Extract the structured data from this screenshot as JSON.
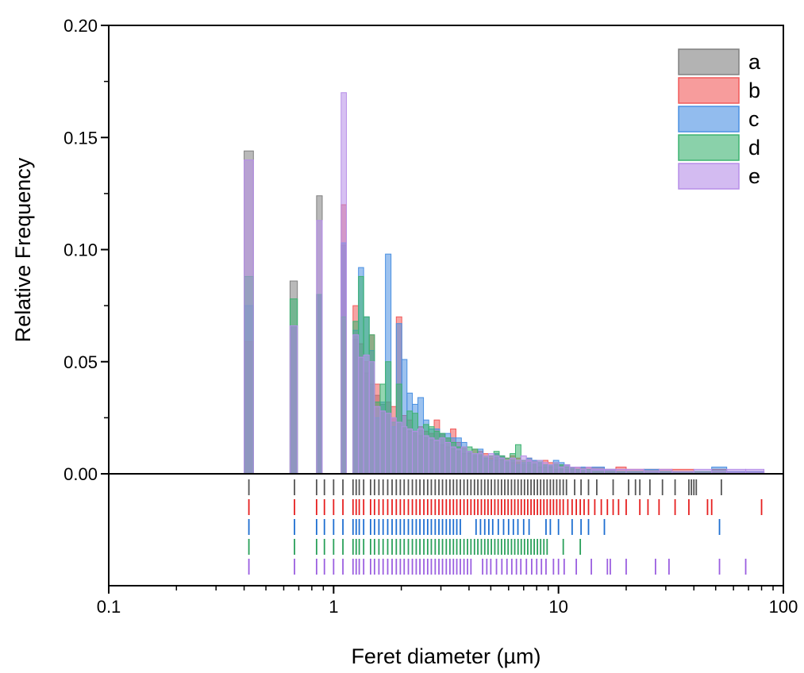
{
  "chart_data": {
    "type": "bar",
    "title": "",
    "xlabel": "Feret diameter (µm)",
    "ylabel": "Relative Frequency",
    "xscale": "log",
    "xlim": [
      0.1,
      100
    ],
    "ylim": [
      0,
      0.2
    ],
    "x_ticks": [
      {
        "value": 0.1,
        "label": "0.1"
      },
      {
        "value": 1,
        "label": "1"
      },
      {
        "value": 10,
        "label": "10"
      },
      {
        "value": 100,
        "label": "100"
      }
    ],
    "y_ticks": [
      {
        "value": 0,
        "label": "0.00"
      },
      {
        "value": 0.05,
        "label": "0.05"
      },
      {
        "value": 0.1,
        "label": "0.10"
      },
      {
        "value": 0.15,
        "label": "0.15"
      },
      {
        "value": 0.2,
        "label": "0.20"
      }
    ],
    "legend_position": "top-right",
    "grid": false,
    "rug_plot": "below-axis",
    "bin_edges": [
      0.4,
      0.44,
      0.64,
      0.69,
      0.84,
      0.89,
      1.08,
      1.14,
      1.22,
      1.29,
      1.36,
      1.44,
      1.52,
      1.61,
      1.7,
      1.8,
      1.9,
      2.01,
      2.12,
      2.24,
      2.37,
      2.51,
      2.65,
      2.8,
      2.96,
      3.13,
      3.31,
      3.5,
      3.7,
      3.91,
      4.13,
      4.37,
      4.62,
      4.88,
      5.16,
      5.45,
      5.76,
      6.09,
      6.44,
      6.81,
      7.2,
      7.61,
      8.04,
      8.5,
      8.98,
      9.49,
      10.03,
      10.6,
      11.21,
      11.85,
      12.52,
      13.24,
      14.0,
      16.0,
      18.0,
      20.0,
      24.0,
      28.0,
      32.0,
      40.0,
      48.0,
      56.0,
      68.0,
      82.0
    ],
    "series": [
      {
        "name": "a",
        "color": "#808080",
        "values": [
          0.144,
          0,
          0.086,
          0,
          0.124,
          0,
          0.102,
          0,
          0.06,
          0.052,
          0.045,
          0.04,
          0.035,
          0.031,
          0.027,
          0.025,
          0.023,
          0.021,
          0.019,
          0.018,
          0.017,
          0.016,
          0.015,
          0.014,
          0.013,
          0.012,
          0.011,
          0.01,
          0.009,
          0.009,
          0.008,
          0.008,
          0.007,
          0.007,
          0.006,
          0.006,
          0.005,
          0.005,
          0.005,
          0.004,
          0.004,
          0.004,
          0.003,
          0.003,
          0.003,
          0.002,
          0.002,
          0.002,
          0.002,
          0.002,
          0.001,
          0.001,
          0.001,
          0.001,
          0.001,
          0.001,
          0.001,
          0.001,
          0.001,
          0.001,
          0.001,
          0,
          0
        ]
      },
      {
        "name": "b",
        "color": "#f15a5a",
        "values": [
          0.059,
          0,
          0.066,
          0,
          0.08,
          0,
          0.12,
          0,
          0.075,
          0.058,
          0.05,
          0.062,
          0.04,
          0.028,
          0.032,
          0.03,
          0.07,
          0.026,
          0.024,
          0.019,
          0.021,
          0.019,
          0.018,
          0.024,
          0.018,
          0.016,
          0.02,
          0.014,
          0.012,
          0.01,
          0.011,
          0.01,
          0.009,
          0.008,
          0.009,
          0.008,
          0.007,
          0.008,
          0.007,
          0.006,
          0.007,
          0.006,
          0.005,
          0.006,
          0.005,
          0.004,
          0.004,
          0.004,
          0.003,
          0.003,
          0.003,
          0.003,
          0.003,
          0.002,
          0.003,
          0.002,
          0.002,
          0.002,
          0.002,
          0.001,
          0.002,
          0.001,
          0.001
        ]
      },
      {
        "name": "c",
        "color": "#4a90e2",
        "values": [
          0.075,
          0,
          0.066,
          0,
          0.08,
          0,
          0.103,
          0,
          0.064,
          0.092,
          0.07,
          0.055,
          0.025,
          0.032,
          0.098,
          0.021,
          0.067,
          0.051,
          0.036,
          0.031,
          0.034,
          0.024,
          0.02,
          0.02,
          0.018,
          0.018,
          0.016,
          0.016,
          0.014,
          0.01,
          0.009,
          0.011,
          0.007,
          0.006,
          0.009,
          0.008,
          0.006,
          0.006,
          0.004,
          0.005,
          0.007,
          0.006,
          0.005,
          0.004,
          0.004,
          0.006,
          0.005,
          0.004,
          0.003,
          0.002,
          0.003,
          0.002,
          0.003,
          0.002,
          0.001,
          0.001,
          0.002,
          0.001,
          0.001,
          0.001,
          0.003,
          0.001,
          0.001
        ]
      },
      {
        "name": "d",
        "color": "#3cb371",
        "values": [
          0.088,
          0,
          0.078,
          0,
          0.08,
          0,
          0.07,
          0,
          0.068,
          0.088,
          0.07,
          0.062,
          0.032,
          0.04,
          0.05,
          0.023,
          0.04,
          0.021,
          0.028,
          0.027,
          0.02,
          0.022,
          0.021,
          0.019,
          0.018,
          0.016,
          0.014,
          0.012,
          0.012,
          0.012,
          0.011,
          0.009,
          0.008,
          0.008,
          0.01,
          0.008,
          0.007,
          0.009,
          0.013,
          0.006,
          0.005,
          0.005,
          0.006,
          0.004,
          0.004,
          0.005,
          0.004,
          0.003,
          0.003,
          0.002,
          0.002,
          0.002,
          0.001,
          0.001,
          0.001,
          0.001,
          0.001,
          0.001,
          0.001,
          0.001,
          0.001,
          0,
          0
        ]
      },
      {
        "name": "e",
        "color": "#b68ee8",
        "values": [
          0.14,
          0,
          0.066,
          0,
          0.113,
          0,
          0.17,
          0,
          0.062,
          0.052,
          0.053,
          0.05,
          0.03,
          0.028,
          0.027,
          0.025,
          0.023,
          0.021,
          0.02,
          0.019,
          0.02,
          0.017,
          0.016,
          0.015,
          0.016,
          0.014,
          0.012,
          0.011,
          0.012,
          0.01,
          0.009,
          0.009,
          0.008,
          0.009,
          0.008,
          0.007,
          0.006,
          0.007,
          0.006,
          0.008,
          0.006,
          0.005,
          0.006,
          0.005,
          0.004,
          0.005,
          0.003,
          0.004,
          0.003,
          0.003,
          0.002,
          0.003,
          0.002,
          0.002,
          0.002,
          0.002,
          0.001,
          0.002,
          0.001,
          0.002,
          0.001,
          0.002,
          0.002
        ]
      }
    ],
    "rug": [
      {
        "name": "a",
        "color": "#555555",
        "x": [
          0.42,
          0.67,
          0.84,
          0.91,
          1.0,
          1.1,
          1.22,
          1.26,
          1.3,
          1.36,
          1.46,
          1.52,
          1.59,
          1.66,
          1.74,
          1.82,
          1.9,
          1.98,
          2.06,
          2.15,
          2.24,
          2.33,
          2.42,
          2.52,
          2.62,
          2.72,
          2.83,
          2.94,
          3.05,
          3.17,
          3.29,
          3.41,
          3.53,
          3.66,
          3.8,
          3.94,
          4.08,
          4.23,
          4.38,
          4.54,
          4.7,
          4.86,
          5.03,
          5.21,
          5.39,
          5.58,
          5.77,
          5.97,
          6.18,
          6.39,
          6.61,
          6.83,
          7.06,
          7.3,
          7.55,
          7.8,
          8.06,
          8.33,
          8.61,
          8.9,
          9.2,
          9.5,
          9.82,
          10.15,
          10.5,
          10.85,
          11.8,
          12.6,
          13.6,
          14.8,
          17.5,
          20.5,
          22.0,
          23.0,
          25.5,
          29.0,
          33.0,
          38.0,
          39.0,
          40.0,
          41.0,
          53.0
        ]
      },
      {
        "name": "b",
        "color": "#e62020",
        "x": [
          0.42,
          0.67,
          0.84,
          0.91,
          1.0,
          1.1,
          1.22,
          1.26,
          1.3,
          1.36,
          1.46,
          1.52,
          1.59,
          1.66,
          1.74,
          1.82,
          1.9,
          1.98,
          2.06,
          2.15,
          2.24,
          2.33,
          2.42,
          2.52,
          2.62,
          2.72,
          2.83,
          2.94,
          3.05,
          3.17,
          3.29,
          3.41,
          3.53,
          3.66,
          3.8,
          3.94,
          4.08,
          4.23,
          4.38,
          4.54,
          4.7,
          4.86,
          5.03,
          5.21,
          5.39,
          5.58,
          5.77,
          5.97,
          6.18,
          6.39,
          6.61,
          6.83,
          7.06,
          7.3,
          7.55,
          7.8,
          8.06,
          8.33,
          8.61,
          8.9,
          9.2,
          9.5,
          9.82,
          10.15,
          10.5,
          11.0,
          11.5,
          12.0,
          12.5,
          13.0,
          13.6,
          14.5,
          15.5,
          16.5,
          17.5,
          18.5,
          20.0,
          23.0,
          25.0,
          28.0,
          33.0,
          38.0,
          46.0,
          48.0,
          80.0
        ]
      },
      {
        "name": "c",
        "color": "#1f6fd1",
        "x": [
          0.42,
          0.67,
          0.84,
          0.91,
          1.0,
          1.1,
          1.22,
          1.26,
          1.3,
          1.36,
          1.46,
          1.52,
          1.59,
          1.66,
          1.74,
          1.82,
          1.9,
          1.98,
          2.06,
          2.15,
          2.24,
          2.33,
          2.42,
          2.52,
          2.62,
          2.72,
          2.83,
          2.94,
          3.05,
          3.17,
          3.29,
          3.41,
          3.53,
          3.66,
          4.3,
          4.5,
          4.7,
          4.9,
          5.1,
          5.4,
          5.7,
          6.0,
          6.3,
          6.6,
          7.0,
          7.4,
          8.8,
          9.2,
          10.0,
          11.5,
          12.6,
          13.6,
          16.0,
          52.0
        ]
      },
      {
        "name": "d",
        "color": "#2aa05a",
        "x": [
          0.42,
          0.67,
          0.84,
          0.91,
          1.0,
          1.1,
          1.22,
          1.26,
          1.3,
          1.36,
          1.46,
          1.52,
          1.59,
          1.66,
          1.74,
          1.82,
          1.9,
          1.98,
          2.06,
          2.15,
          2.24,
          2.33,
          2.42,
          2.52,
          2.62,
          2.72,
          2.83,
          2.94,
          3.05,
          3.17,
          3.29,
          3.41,
          3.53,
          3.66,
          3.8,
          3.94,
          4.08,
          4.23,
          4.38,
          4.54,
          4.7,
          4.86,
          5.03,
          5.21,
          5.39,
          5.58,
          5.77,
          5.97,
          6.18,
          6.39,
          6.61,
          6.83,
          7.06,
          7.3,
          7.55,
          7.8,
          8.06,
          8.33,
          8.61,
          8.9,
          10.5,
          12.5
        ]
      },
      {
        "name": "e",
        "color": "#9b5fe0",
        "x": [
          0.42,
          0.67,
          0.84,
          0.91,
          1.0,
          1.1,
          1.22,
          1.26,
          1.3,
          1.36,
          1.46,
          1.52,
          1.59,
          1.66,
          1.74,
          1.82,
          1.9,
          1.98,
          2.06,
          2.15,
          2.24,
          2.33,
          2.42,
          2.52,
          2.62,
          2.72,
          2.83,
          2.94,
          3.05,
          3.17,
          3.29,
          3.41,
          3.53,
          3.66,
          3.8,
          3.94,
          4.08,
          4.6,
          4.8,
          5.0,
          5.3,
          5.6,
          5.9,
          6.2,
          6.5,
          6.8,
          7.2,
          7.6,
          8.0,
          8.4,
          8.8,
          9.5,
          10.0,
          10.6,
          12.0,
          14.0,
          16.5,
          17.0,
          20.0,
          27.0,
          31.0,
          52.0,
          68.0
        ]
      }
    ]
  }
}
